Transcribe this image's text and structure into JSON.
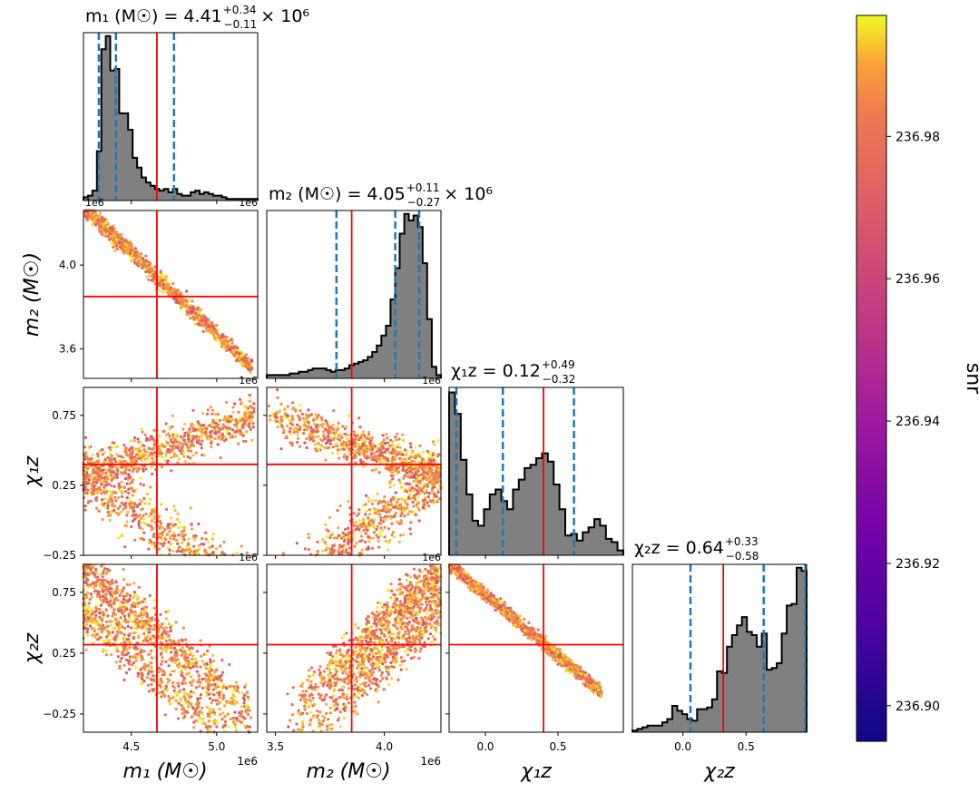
{
  "chart_data": {
    "type": "corner",
    "parameters": [
      {
        "key": "m1",
        "title": "m₁ (M☉) = 4.41",
        "title_sup": "+0.34",
        "title_sub": "−0.11",
        "title_suffix": "× 10⁶",
        "axis_label": "m₁ (M☉)",
        "range": [
          4.22,
          5.24
        ],
        "ticks": [
          4.5,
          5.0
        ],
        "tick_labels": [
          "4.5",
          "5.0"
        ],
        "offset": "1e6",
        "truth": 4.65,
        "quantiles": [
          4.31,
          4.41,
          4.75
        ]
      },
      {
        "key": "m2",
        "title": "m₂ (M☉) = 4.05",
        "title_sup": "+0.11",
        "title_sub": "−0.27",
        "title_suffix": "× 10⁶",
        "axis_label": "m₂ (M☉)",
        "range": [
          3.46,
          4.26
        ],
        "ticks": [
          3.6,
          4.0
        ],
        "tick_labels": [
          "3.6",
          "4.0"
        ],
        "bottom_ticks": [
          3.5,
          4.0
        ],
        "bottom_tick_labels": [
          "3.5",
          "4.0"
        ],
        "offset": "1e6",
        "truth": 3.85,
        "quantiles": [
          3.78,
          4.05,
          4.16
        ]
      },
      {
        "key": "chi1z",
        "title": "χ₁z = 0.12",
        "title_sup": "+0.49",
        "title_sub": "−0.32",
        "title_suffix": "",
        "axis_label": "χ₁z",
        "range": [
          -0.25,
          0.95
        ],
        "ticks": [
          -0.25,
          0.25,
          0.75
        ],
        "tick_labels": [
          "−0.25",
          "0.25",
          "0.75"
        ],
        "bottom_ticks": [
          0.0,
          0.5
        ],
        "bottom_tick_labels": [
          "0.0",
          "0.5"
        ],
        "offset": "",
        "truth": 0.4,
        "quantiles": [
          -0.2,
          0.12,
          0.61
        ]
      },
      {
        "key": "chi2z",
        "title": "χ₂z = 0.64",
        "title_sup": "+0.33",
        "title_sub": "−0.58",
        "title_suffix": "",
        "axis_label": "χ₂z",
        "range": [
          -0.4,
          0.98
        ],
        "ticks": [
          -0.25,
          0.25,
          0.75
        ],
        "tick_labels": [
          "−0.25",
          "0.25",
          "0.75"
        ],
        "bottom_ticks": [
          0.0,
          0.5
        ],
        "bottom_tick_labels": [
          "0.0",
          "0.5"
        ],
        "offset": "",
        "truth": 0.32,
        "quantiles": [
          0.06,
          0.64,
          0.97
        ]
      }
    ],
    "histograms": [
      [
        2,
        3,
        6,
        30,
        92,
        100,
        79,
        80,
        53,
        53,
        43,
        26,
        20,
        14,
        11,
        9,
        7,
        6,
        7,
        5,
        7,
        4,
        3,
        3,
        5,
        6,
        4,
        5,
        4,
        3,
        3,
        2,
        1,
        1,
        1,
        1,
        1,
        1,
        1
      ],
      [
        2,
        2,
        2,
        2,
        2,
        3,
        3,
        4,
        4,
        5,
        6,
        6,
        6,
        5,
        4,
        5,
        5,
        6,
        8,
        9,
        10,
        11,
        13,
        16,
        20,
        26,
        32,
        48,
        67,
        88,
        100,
        96,
        99,
        92,
        70,
        36,
        7,
        2
      ],
      [
        99,
        86,
        58,
        37,
        21,
        18,
        28,
        37,
        40,
        33,
        28,
        40,
        46,
        53,
        55,
        59,
        62,
        57,
        43,
        28,
        12,
        13,
        9,
        14,
        17,
        22,
        18,
        10,
        8,
        3
      ],
      [
        1,
        2,
        3,
        4,
        4,
        4,
        6,
        8,
        16,
        13,
        11,
        8,
        7,
        14,
        14,
        15,
        20,
        37,
        36,
        52,
        59,
        65,
        70,
        61,
        59,
        52,
        60,
        38,
        39,
        42,
        60,
        77,
        78,
        100,
        98
      ]
    ],
    "colorbar": {
      "label": "snr",
      "min": 236.895,
      "max": 236.997,
      "ticks": [
        236.9,
        236.92,
        236.94,
        236.96,
        236.98
      ],
      "tick_labels": [
        "236.90",
        "236.92",
        "236.94",
        "236.96",
        "236.98"
      ],
      "colormap": "plasma"
    },
    "colors": {
      "truth": "#ff0000",
      "quantile": "#1f77b4",
      "hist_fill": "#808080",
      "hist_edge": "#000000"
    }
  }
}
